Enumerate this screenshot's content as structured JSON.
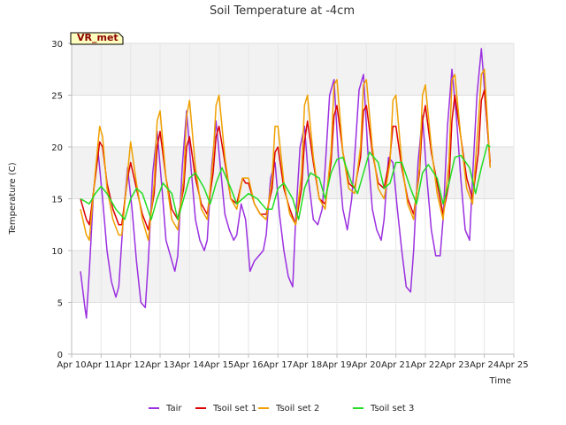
{
  "chart_data": {
    "type": "line",
    "title": "Soil Temperature at -4cm",
    "xlabel": "Time",
    "ylabel": "Temperature (C)",
    "tag": "VR_met",
    "xlim": [
      0,
      15
    ],
    "ylim": [
      0,
      30
    ],
    "x_ticks": [
      0,
      1,
      2,
      3,
      4,
      5,
      6,
      7,
      8,
      9,
      10,
      11,
      12,
      13,
      14,
      15
    ],
    "x_tick_labels": [
      "Apr 10",
      "Apr 11",
      "Apr 12",
      "Apr 13",
      "Apr 14",
      "Apr 15",
      "Apr 16",
      "Apr 17",
      "Apr 18",
      "Apr 19",
      "Apr 20",
      "Apr 21",
      "Apr 22",
      "Apr 23",
      "Apr 24",
      "Apr 25"
    ],
    "y_ticks": [
      0,
      5,
      10,
      15,
      20,
      25,
      30
    ],
    "y_tick_labels": [
      "0",
      "5",
      "10",
      "15",
      "20",
      "25",
      "30"
    ],
    "grid": true,
    "legend_position": "bottom",
    "series": [
      {
        "name": "Tair",
        "color": "#9b30e0",
        "x": [
          0.3,
          0.45,
          0.5,
          0.6,
          0.75,
          0.9,
          1.05,
          1.2,
          1.35,
          1.5,
          1.6,
          1.75,
          1.9,
          2.05,
          2.2,
          2.35,
          2.5,
          2.6,
          2.75,
          2.9,
          3.05,
          3.2,
          3.35,
          3.5,
          3.6,
          3.75,
          3.9,
          4.05,
          4.2,
          4.35,
          4.5,
          4.6,
          4.75,
          4.9,
          5.05,
          5.2,
          5.35,
          5.5,
          5.6,
          5.75,
          5.9,
          6.05,
          6.2,
          6.35,
          6.5,
          6.6,
          6.75,
          6.9,
          7.05,
          7.2,
          7.35,
          7.5,
          7.6,
          7.75,
          7.9,
          8.05,
          8.2,
          8.35,
          8.5,
          8.6,
          8.75,
          8.9,
          9.05,
          9.2,
          9.35,
          9.5,
          9.6,
          9.75,
          9.9,
          10.05,
          10.2,
          10.35,
          10.5,
          10.6,
          10.75,
          10.9,
          11.05,
          11.2,
          11.35,
          11.5,
          11.6,
          11.75,
          11.9,
          12.05,
          12.2,
          12.35,
          12.5,
          12.6,
          12.75,
          12.9,
          13.05,
          13.2,
          13.35,
          13.5,
          13.6,
          13.75,
          13.9,
          14.05,
          14.2
        ],
        "y": [
          8.0,
          4.5,
          3.5,
          8.0,
          16.0,
          19.5,
          15.0,
          10.0,
          7.0,
          5.5,
          6.5,
          13.0,
          18.0,
          14.0,
          9.0,
          5.0,
          4.5,
          9.0,
          17.5,
          21.5,
          16.5,
          11.0,
          9.5,
          8.0,
          9.5,
          18.0,
          23.5,
          18.0,
          13.0,
          11.0,
          10.0,
          11.0,
          18.0,
          22.5,
          18.0,
          13.5,
          12.0,
          11.0,
          11.5,
          14.5,
          13.0,
          8.0,
          9.0,
          9.5,
          10.0,
          11.5,
          17.0,
          18.5,
          13.5,
          10.0,
          7.5,
          6.5,
          13.0,
          20.0,
          22.0,
          16.5,
          13.0,
          12.5,
          14.0,
          18.0,
          25.0,
          26.5,
          19.0,
          14.0,
          12.0,
          15.0,
          19.0,
          25.5,
          27.0,
          19.5,
          14.0,
          12.0,
          11.0,
          13.0,
          19.0,
          18.5,
          14.0,
          10.0,
          6.5,
          6.0,
          10.0,
          18.5,
          23.0,
          17.0,
          12.0,
          9.5,
          9.5,
          13.0,
          22.0,
          27.5,
          23.0,
          17.0,
          12.0,
          11.0,
          17.0,
          25.0,
          29.5,
          24.0,
          18.0
        ]
      },
      {
        "name": "Tsoil set 1",
        "color": "#dd0000",
        "x": [
          0.3,
          0.5,
          0.6,
          0.8,
          0.95,
          1.05,
          1.2,
          1.4,
          1.6,
          1.7,
          1.9,
          2.0,
          2.2,
          2.4,
          2.6,
          2.8,
          2.9,
          3.0,
          3.2,
          3.4,
          3.6,
          3.8,
          3.9,
          4.0,
          4.2,
          4.4,
          4.6,
          4.8,
          4.9,
          5.0,
          5.2,
          5.4,
          5.6,
          5.8,
          5.9,
          6.0,
          6.2,
          6.4,
          6.6,
          6.8,
          6.9,
          7.0,
          7.2,
          7.4,
          7.6,
          7.8,
          7.9,
          8.0,
          8.2,
          8.4,
          8.6,
          8.8,
          8.9,
          9.0,
          9.2,
          9.4,
          9.6,
          9.8,
          9.9,
          10.0,
          10.2,
          10.4,
          10.6,
          10.8,
          10.9,
          11.0,
          11.2,
          11.4,
          11.6,
          11.8,
          11.9,
          12.0,
          12.2,
          12.4,
          12.6,
          12.8,
          12.9,
          13.0,
          13.2,
          13.4,
          13.6,
          13.8,
          13.9,
          14.0,
          14.2
        ],
        "y": [
          15.0,
          13.0,
          12.5,
          17.0,
          20.5,
          20.0,
          16.5,
          14.0,
          12.5,
          12.5,
          17.0,
          18.5,
          16.0,
          13.5,
          12.0,
          15.5,
          20.0,
          21.5,
          17.0,
          14.0,
          13.0,
          16.0,
          20.0,
          21.0,
          17.0,
          14.5,
          13.5,
          17.5,
          21.0,
          22.0,
          18.5,
          15.0,
          14.5,
          17.0,
          16.5,
          16.5,
          14.5,
          13.5,
          13.5,
          16.0,
          19.5,
          20.0,
          16.0,
          14.0,
          12.5,
          16.0,
          20.5,
          22.5,
          18.5,
          15.0,
          14.5,
          18.5,
          23.0,
          24.0,
          19.5,
          16.5,
          16.0,
          19.0,
          23.5,
          24.0,
          19.5,
          16.5,
          16.0,
          19.0,
          22.0,
          22.0,
          18.0,
          15.0,
          13.5,
          17.5,
          22.5,
          24.0,
          19.5,
          16.5,
          13.5,
          16.5,
          22.5,
          25.0,
          21.0,
          17.0,
          15.0,
          19.5,
          24.5,
          25.5,
          18.5
        ]
      },
      {
        "name": "Tsoil set 2",
        "color": "#f0a000",
        "x": [
          0.3,
          0.5,
          0.6,
          0.8,
          0.95,
          1.05,
          1.2,
          1.4,
          1.6,
          1.7,
          1.9,
          2.0,
          2.2,
          2.4,
          2.6,
          2.8,
          2.9,
          3.0,
          3.2,
          3.4,
          3.6,
          3.8,
          3.9,
          4.0,
          4.2,
          4.4,
          4.6,
          4.8,
          4.9,
          5.0,
          5.2,
          5.4,
          5.6,
          5.8,
          5.9,
          6.0,
          6.2,
          6.4,
          6.6,
          6.8,
          6.9,
          7.0,
          7.2,
          7.4,
          7.6,
          7.8,
          7.9,
          8.0,
          8.2,
          8.4,
          8.6,
          8.8,
          8.9,
          9.0,
          9.2,
          9.4,
          9.6,
          9.8,
          9.9,
          10.0,
          10.2,
          10.4,
          10.6,
          10.8,
          10.9,
          11.0,
          11.2,
          11.4,
          11.6,
          11.8,
          11.9,
          12.0,
          12.2,
          12.4,
          12.6,
          12.8,
          12.9,
          13.0,
          13.2,
          13.4,
          13.6,
          13.8,
          13.9,
          14.0,
          14.2
        ],
        "y": [
          14.0,
          11.5,
          11.0,
          17.5,
          22.0,
          21.0,
          16.0,
          13.0,
          11.5,
          11.5,
          17.5,
          20.5,
          16.5,
          13.0,
          11.0,
          16.5,
          22.5,
          23.5,
          17.0,
          13.0,
          12.0,
          17.0,
          23.0,
          24.5,
          18.0,
          14.0,
          13.0,
          19.0,
          24.0,
          25.0,
          19.0,
          15.0,
          14.0,
          17.0,
          17.0,
          17.0,
          14.5,
          13.5,
          13.0,
          17.0,
          22.0,
          22.0,
          16.5,
          13.5,
          12.5,
          17.5,
          24.0,
          25.0,
          19.0,
          15.0,
          14.0,
          19.5,
          26.0,
          26.5,
          19.5,
          16.0,
          15.5,
          20.0,
          26.0,
          26.5,
          20.0,
          16.0,
          15.0,
          18.5,
          24.5,
          25.0,
          18.5,
          14.5,
          13.0,
          18.0,
          25.0,
          26.0,
          20.0,
          15.5,
          13.0,
          18.5,
          26.5,
          27.0,
          21.0,
          16.0,
          14.5,
          22.5,
          27.0,
          27.5,
          18.0
        ]
      },
      {
        "name": "Tsoil set 3",
        "color": "#22dd22",
        "x": [
          0.3,
          0.6,
          0.8,
          1.0,
          1.2,
          1.5,
          1.8,
          2.0,
          2.2,
          2.4,
          2.7,
          2.9,
          3.1,
          3.4,
          3.6,
          3.8,
          4.0,
          4.2,
          4.5,
          4.7,
          4.9,
          5.1,
          5.4,
          5.6,
          5.8,
          6.0,
          6.3,
          6.6,
          6.8,
          7.0,
          7.2,
          7.5,
          7.7,
          7.9,
          8.1,
          8.4,
          8.6,
          8.8,
          9.0,
          9.2,
          9.5,
          9.7,
          9.9,
          10.1,
          10.4,
          10.6,
          10.8,
          11.0,
          11.2,
          11.5,
          11.7,
          11.9,
          12.1,
          12.4,
          12.6,
          12.8,
          13.0,
          13.2,
          13.5,
          13.7,
          13.9,
          14.1,
          14.2
        ],
        "y": [
          15.0,
          14.5,
          15.5,
          16.2,
          15.5,
          14.0,
          13.0,
          15.0,
          16.0,
          15.5,
          13.0,
          15.0,
          16.5,
          15.5,
          13.0,
          15.0,
          17.0,
          17.5,
          16.0,
          14.5,
          16.5,
          18.0,
          16.0,
          14.5,
          15.0,
          15.5,
          15.0,
          14.0,
          14.0,
          16.0,
          16.5,
          15.0,
          13.0,
          16.0,
          17.5,
          17.0,
          15.0,
          17.5,
          18.8,
          19.0,
          16.5,
          15.5,
          17.5,
          19.5,
          18.5,
          16.0,
          16.5,
          18.5,
          18.5,
          16.0,
          14.5,
          17.5,
          18.3,
          17.0,
          14.5,
          16.5,
          19.0,
          19.2,
          18.0,
          15.5,
          18.0,
          20.2,
          20.0
        ]
      }
    ]
  }
}
